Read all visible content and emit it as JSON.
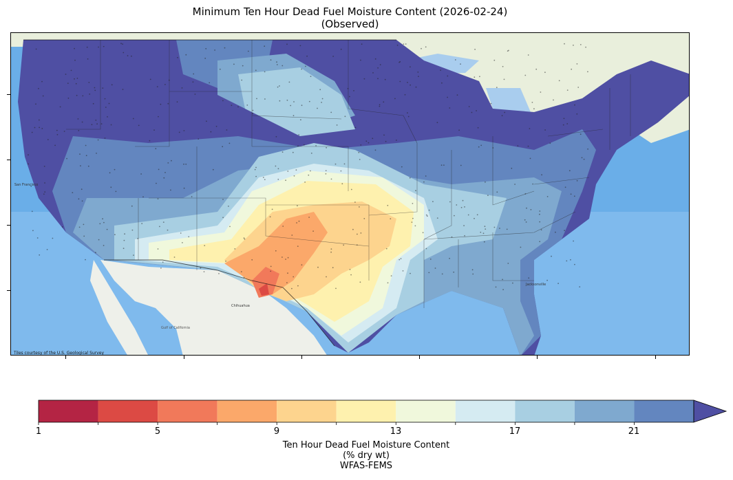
{
  "title": {
    "line1": "Minimum Ten Hour Dead Fuel Moisture Content (2026-02-24)",
    "line2": "(Observed)"
  },
  "map": {
    "attribution": "Tiles courtesy of the U.S. Geological Survey",
    "place_labels": [
      "San Francisco",
      "Chihuahua",
      "Jacksonville",
      "Gulf of California"
    ],
    "colors": {
      "ocean": "#6aaee8",
      "land_mexico": "#eef0ea",
      "land_canada": "#e9efdc",
      "great_lakes": "#a9cdee"
    }
  },
  "colorbar": {
    "ticks": [
      "1",
      "5",
      "9",
      "13",
      "17",
      "21"
    ],
    "bins": [
      {
        "min": 1,
        "max": 3,
        "color": "#b42444"
      },
      {
        "min": 3,
        "max": 5,
        "color": "#dc4a44"
      },
      {
        "min": 5,
        "max": 7,
        "color": "#f1795a"
      },
      {
        "min": 7,
        "max": 9,
        "color": "#fba86a"
      },
      {
        "min": 9,
        "max": 11,
        "color": "#fdd48e"
      },
      {
        "min": 11,
        "max": 13,
        "color": "#fef1ae"
      },
      {
        "min": 13,
        "max": 15,
        "color": "#f0f8dc"
      },
      {
        "min": 15,
        "max": 17,
        "color": "#d5ebf2"
      },
      {
        "min": 17,
        "max": 19,
        "color": "#a8cfe2"
      },
      {
        "min": 19,
        "max": 21,
        "color": "#7fa9cf"
      },
      {
        "min": 21,
        "max": 23,
        "color": "#6386bf"
      }
    ],
    "extend_color": "#4f4fa3",
    "caption": {
      "line1": "Ten Hour Dead Fuel Moisture Content",
      "line2": "(% dry wt)",
      "line3": "WFAS-FEMS"
    }
  }
}
